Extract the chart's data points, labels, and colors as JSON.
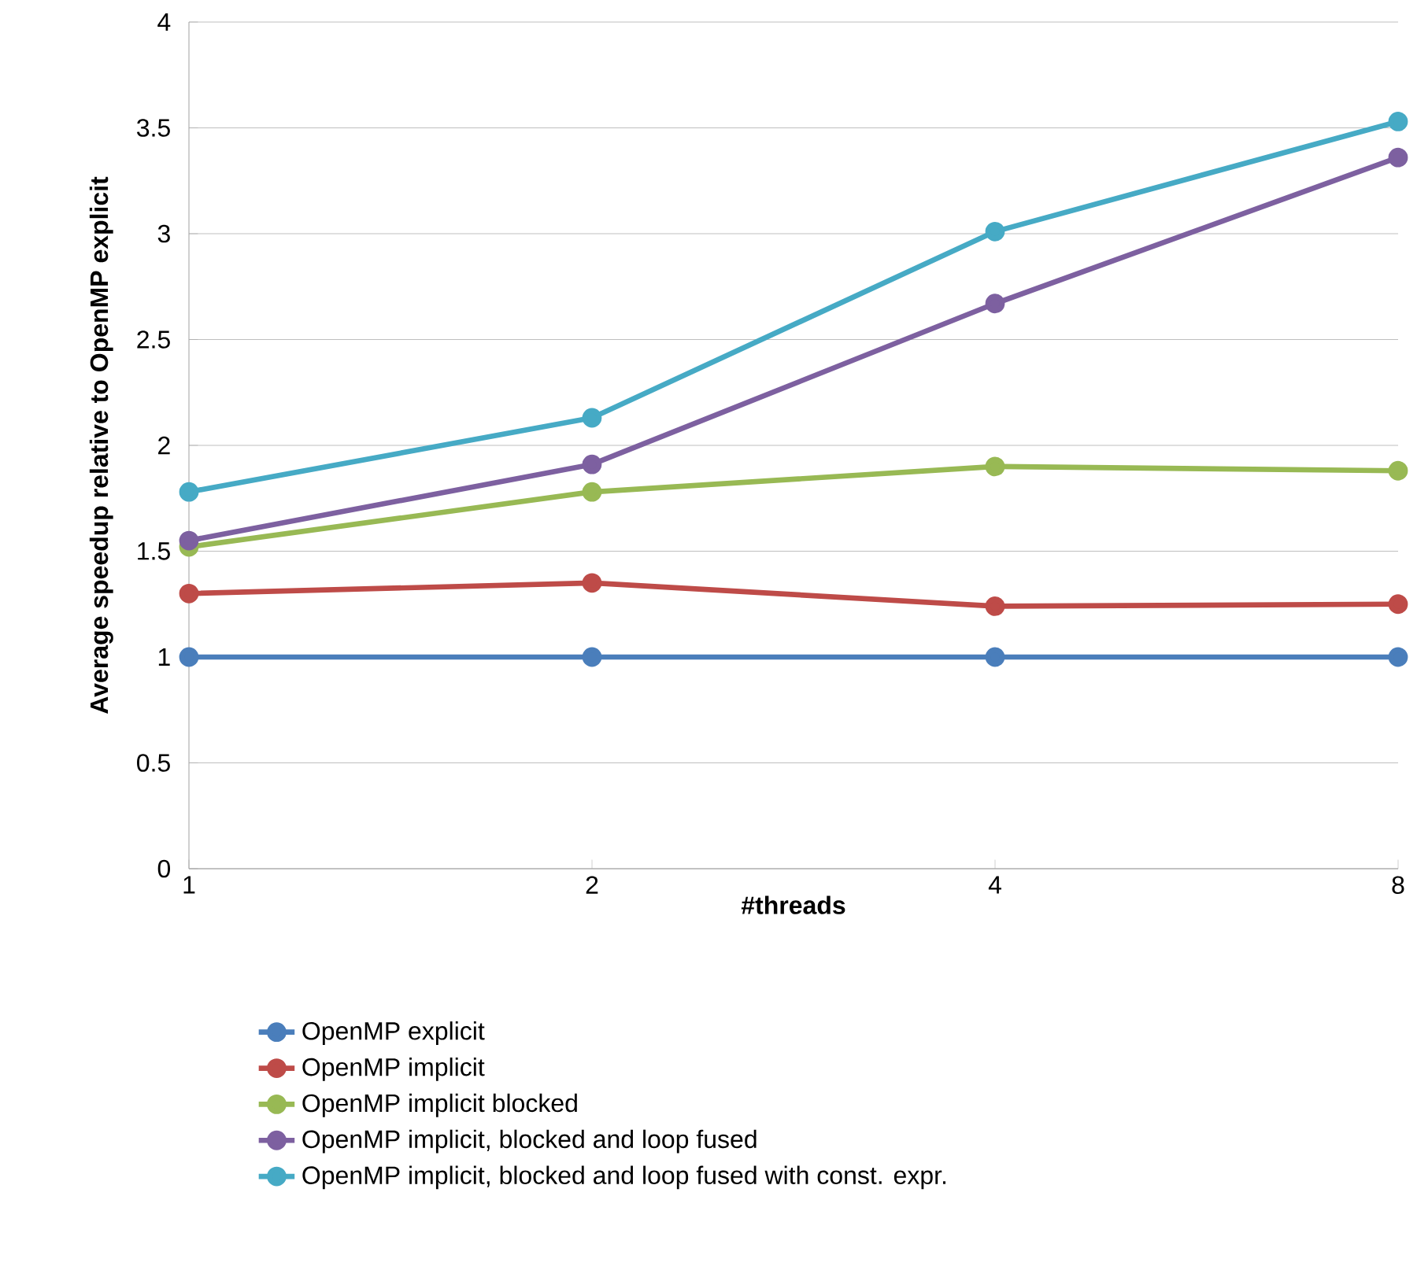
{
  "chart_data": {
    "type": "line",
    "xlabel": "#threads",
    "ylabel": "Average speedup relative to OpenMP explicit",
    "categories": [
      "1",
      "2",
      "4",
      "8"
    ],
    "series": [
      {
        "name": "OpenMP explicit",
        "color": "#4a7ebb",
        "values": [
          1,
          1,
          1,
          1
        ]
      },
      {
        "name": "OpenMP implicit",
        "color": "#be4b48",
        "values": [
          1.3,
          1.35,
          1.24,
          1.25
        ]
      },
      {
        "name": "OpenMP implicit  blocked",
        "color": "#98b954",
        "values": [
          1.52,
          1.78,
          1.9,
          1.88
        ]
      },
      {
        "name": "OpenMP implicit, blocked and loop fused",
        "color": "#7d60a0",
        "values": [
          1.55,
          1.91,
          2.67,
          3.36
        ]
      },
      {
        "name": "OpenMP implicit, blocked and loop fused with const. expr.",
        "color": "#46aac5",
        "values": [
          1.78,
          2.13,
          3.01,
          3.53
        ]
      }
    ],
    "ylim": [
      0,
      4
    ],
    "yticks": [
      0,
      0.5,
      1,
      1.5,
      2,
      2.5,
      3,
      3.5,
      4
    ],
    "grid": "y",
    "legend": "bottom",
    "marker": "circle",
    "line_style": "solid"
  }
}
